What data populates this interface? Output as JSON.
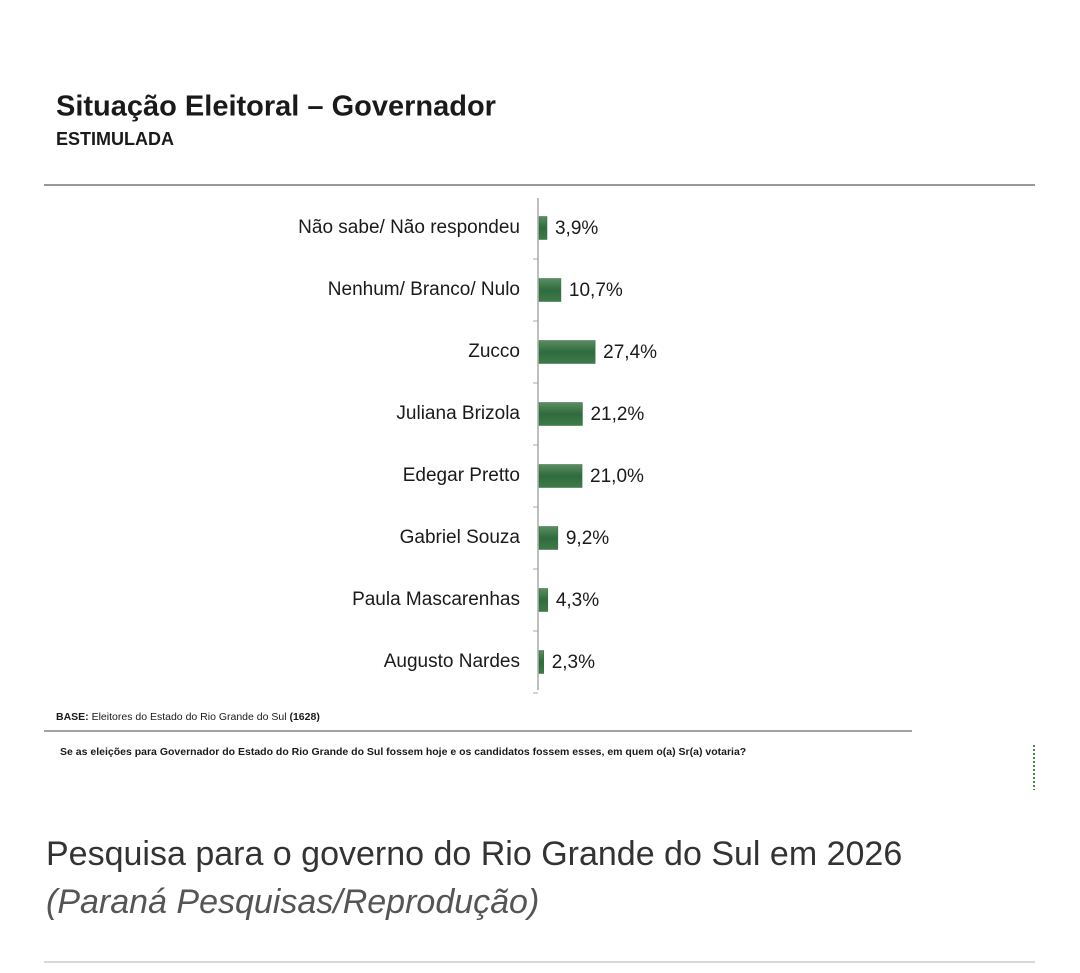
{
  "chart_data": {
    "type": "bar",
    "orientation": "horizontal",
    "title": "Situação Eleitoral – Governador",
    "subtitle": "ESTIMULADA",
    "categories": [
      "Não sabe/ Não respondeu",
      "Nenhum/ Branco/ Nulo",
      "Zucco",
      "Juliana Brizola",
      "Edegar Pretto",
      "Gabriel Souza",
      "Paula Mascarenhas",
      "Augusto Nardes"
    ],
    "values": [
      3.9,
      10.7,
      27.4,
      21.2,
      21.0,
      9.2,
      4.3,
      2.3
    ],
    "value_labels": [
      "3,9%",
      "10,7%",
      "27,4%",
      "21,2%",
      "21,0%",
      "9,2%",
      "4,3%",
      "2,3%"
    ],
    "color": "#2f6b3c",
    "base": {
      "label": "BASE:",
      "text": "Eleitores do Estado do Rio Grande do Sul",
      "count": "(1628)"
    },
    "question": "Se as eleições para Governador do Estado do Rio Grande do Sul fossem hoje e os candidatos fossem esses, em quem o(a) Sr(a) votaria?"
  },
  "caption": {
    "text": "Pesquisa para o governo do Rio Grande do Sul em 2026",
    "credit": "(Paraná Pesquisas/Reprodução)"
  }
}
